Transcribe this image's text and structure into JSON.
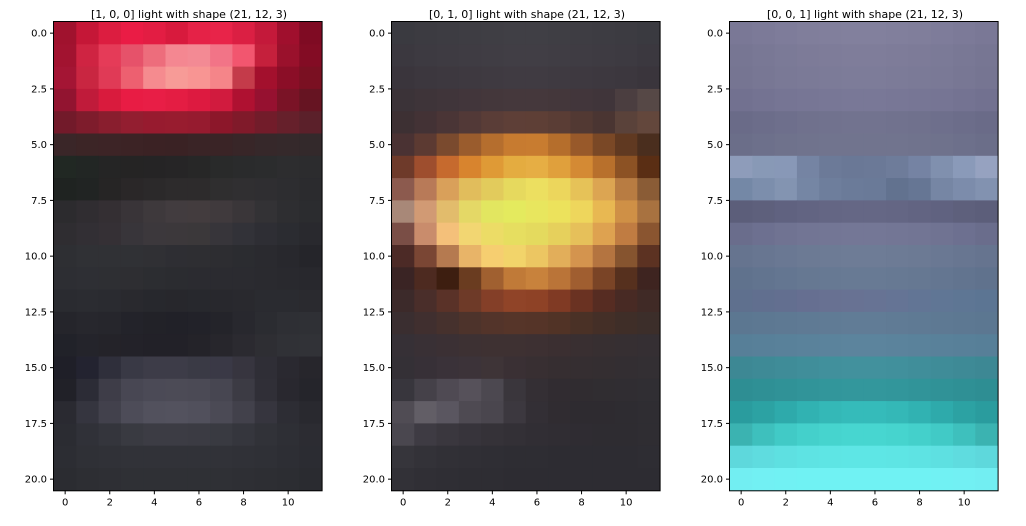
{
  "chart_data": [
    {
      "type": "heatmap",
      "title": "[1, 0, 0] light with shape (21, 12, 3)",
      "xlabel": "",
      "ylabel": "",
      "xlim": [
        -0.5,
        11.5
      ],
      "ylim": [
        20.5,
        -0.5
      ],
      "x_ticks": [
        0,
        2,
        4,
        6,
        8,
        10
      ],
      "y_ticks": [
        0.0,
        2.5,
        5.0,
        7.5,
        10.0,
        12.5,
        15.0,
        17.5,
        20.0
      ],
      "x_tick_labels": [
        "0",
        "2",
        "4",
        "6",
        "8",
        "10"
      ],
      "y_tick_labels": [
        "0.0",
        "2.5",
        "5.0",
        "7.5",
        "10.0",
        "12.5",
        "15.0",
        "17.5",
        "20.0"
      ],
      "shape": [
        21,
        12,
        3
      ],
      "grid": false,
      "row_colors": [
        [
          "#a0122e",
          "#c51737",
          "#dc1d40",
          "#ea1c45",
          "#e31d43",
          "#d81a3d",
          "#e52247",
          "#e82449",
          "#db1f43",
          "#c4193a",
          "#a00f2d",
          "#7f0b23"
        ],
        [
          "#a21330",
          "#cf2442",
          "#e53b58",
          "#e6526a",
          "#ed6d7c",
          "#f48791",
          "#f38a94",
          "#f27487",
          "#f2566f",
          "#c5203c",
          "#9a112c",
          "#830c24"
        ],
        [
          "#a41534",
          "#c92641",
          "#e03a56",
          "#ed6070",
          "#f58b8f",
          "#f79b97",
          "#f89593",
          "#f58589",
          "#c43b4a",
          "#a3102d",
          "#8b0e27",
          "#7a1022"
        ],
        [
          "#921430",
          "#c01b3a",
          "#d91b3d",
          "#e81c44",
          "#e81e46",
          "#e41d43",
          "#dd1a40",
          "#d11b3e",
          "#af1131",
          "#961130",
          "#7a1326",
          "#661422"
        ],
        [
          "#721a2a",
          "#7e1c2c",
          "#891e2e",
          "#931e30",
          "#971b2f",
          "#981c2f",
          "#961b2f",
          "#8c172a",
          "#801a2a",
          "#721c2a",
          "#66202b",
          "#5b202a"
        ],
        [
          "#3a2628",
          "#3c2526",
          "#3d2426",
          "#3c2325",
          "#3b2224",
          "#3a2224",
          "#3a2426",
          "#3a2426",
          "#382628",
          "#36282a",
          "#35292b",
          "#33292b"
        ],
        [
          "#212823",
          "#222624",
          "#252525",
          "#252424",
          "#252425",
          "#262526",
          "#272727",
          "#292a2a",
          "#2a2b2c",
          "#2b2c2d",
          "#2d2d2f",
          "#2c2c2e"
        ],
        [
          "#1f2321",
          "#212423",
          "#262525",
          "#2a2728",
          "#2b292a",
          "#2d2b2c",
          "#2d2b2c",
          "#2f2e2f",
          "#302f31",
          "#2f2e31",
          "#2d2d30",
          "#2b2b2e"
        ],
        [
          "#2c2b2e",
          "#302d31",
          "#342f33",
          "#393438",
          "#3e393c",
          "#423c3f",
          "#433c3e",
          "#403a3d",
          "#3a3639",
          "#333235",
          "#2e2e31",
          "#2b2c2f"
        ],
        [
          "#2f2d31",
          "#322f34",
          "#353035",
          "#38353a",
          "#3c383c",
          "#3c383b",
          "#3b383a",
          "#37353a",
          "#323238",
          "#2e2e34",
          "#2b2c31",
          "#29292e"
        ],
        [
          "#2e2f33",
          "#303135",
          "#303135",
          "#303135",
          "#303034",
          "#2e2e33",
          "#2e2e32",
          "#2d2d31",
          "#2b2c30",
          "#2a2a2f",
          "#28282d",
          "#25252a"
        ],
        [
          "#2d2e33",
          "#2e2f34",
          "#2e2f33",
          "#2e2e32",
          "#2c2d31",
          "#2b2c30",
          "#2b2b30",
          "#2b2b30",
          "#2b2b30",
          "#2a2a2f",
          "#29292e",
          "#28282d"
        ],
        [
          "#2a2b30",
          "#2b2c31",
          "#2a2b30",
          "#29292e",
          "#27282d",
          "#27272c",
          "#27282d",
          "#28282d",
          "#29292e",
          "#2a2b30",
          "#2a2b30",
          "#2a2a2f"
        ],
        [
          "#25252b",
          "#27272d",
          "#26262c",
          "#23232a",
          "#222228",
          "#212128",
          "#222229",
          "#24242a",
          "#28282e",
          "#2b2c31",
          "#2e2f34",
          "#2f3035"
        ],
        [
          "#212229",
          "#24242b",
          "#242329",
          "#232229",
          "#222128",
          "#222128",
          "#242329",
          "#27262c",
          "#2b2a30",
          "#2e2e33",
          "#303136",
          "#313237"
        ],
        [
          "#1f1f28",
          "#232330",
          "#2f2f3b",
          "#393945",
          "#3d3c48",
          "#3d3c48",
          "#3a3a45",
          "#3a3946",
          "#37353f",
          "#2f2e36",
          "#2a2930",
          "#27262c"
        ],
        [
          "#212128",
          "#2c2c36",
          "#3e3d48",
          "#484753",
          "#4b4a56",
          "#4c4b56",
          "#4b4a55",
          "#474651",
          "#3c3b44",
          "#302f37",
          "#29282f",
          "#25252b"
        ],
        [
          "#2a2a31",
          "#35353f",
          "#42414c",
          "#4d4c58",
          "#52515d",
          "#53525e",
          "#51505c",
          "#4b4a55",
          "#42414b",
          "#36353e",
          "#2d2d34",
          "#29292f"
        ],
        [
          "#2b2c32",
          "#303138",
          "#34353c",
          "#393a41",
          "#3c3c44",
          "#3c3c44",
          "#3b3b43",
          "#393a41",
          "#35363d",
          "#313238",
          "#2e2f35",
          "#2c2c32"
        ],
        [
          "#2c2d33",
          "#2f3036",
          "#303137",
          "#313238",
          "#313238",
          "#313238",
          "#313238",
          "#313238",
          "#303137",
          "#2f3036",
          "#2d2e34",
          "#2b2c32"
        ],
        [
          "#2b2c31",
          "#2d2e33",
          "#2e2f34",
          "#2f3035",
          "#2f3035",
          "#2f3035",
          "#2f3035",
          "#2f3035",
          "#2e2f34",
          "#2d2e33",
          "#2c2d32",
          "#2a2b30"
        ]
      ]
    },
    {
      "type": "heatmap",
      "title": "[0, 1, 0] light with shape (21, 12, 3)",
      "xlabel": "",
      "ylabel": "",
      "xlim": [
        -0.5,
        11.5
      ],
      "ylim": [
        20.5,
        -0.5
      ],
      "x_ticks": [
        0,
        2,
        4,
        6,
        8,
        10
      ],
      "y_ticks": [
        0.0,
        2.5,
        5.0,
        7.5,
        10.0,
        12.5,
        15.0,
        17.5,
        20.0
      ],
      "x_tick_labels": [
        "0",
        "2",
        "4",
        "6",
        "8",
        "10"
      ],
      "y_tick_labels": [
        "0.0",
        "2.5",
        "5.0",
        "7.5",
        "10.0",
        "12.5",
        "15.0",
        "17.5",
        "20.0"
      ],
      "shape": [
        21,
        12,
        3
      ],
      "grid": false,
      "row_colors": [
        [
          "#3a3a40",
          "#3c3b41",
          "#3d3c42",
          "#3e3d43",
          "#3f3e44",
          "#403f45",
          "#403f45",
          "#3f3e44",
          "#3e3d43",
          "#3d3c42",
          "#3c3b41",
          "#3a3a40"
        ],
        [
          "#3b383f",
          "#3d3a41",
          "#3e3b42",
          "#3f3c43",
          "#403d44",
          "#413e45",
          "#413e45",
          "#403d44",
          "#3f3c43",
          "#3e3b42",
          "#3d3a41",
          "#3b383f"
        ],
        [
          "#3a353c",
          "#3c373e",
          "#3d383f",
          "#3e3940",
          "#3f3a41",
          "#403b42",
          "#403b42",
          "#3f3a41",
          "#3e3940",
          "#3d383f",
          "#3c373e",
          "#3a353c"
        ],
        [
          "#3b3338",
          "#3e3439",
          "#40353a",
          "#42363b",
          "#44373b",
          "#45383c",
          "#45383c",
          "#44373b",
          "#42363b",
          "#40353a",
          "#4b3e40",
          "#564846"
        ],
        [
          "#3d3033",
          "#433235",
          "#4a3536",
          "#523937",
          "#5a3d37",
          "#5e3f37",
          "#5e3f36",
          "#5a3d35",
          "#523933",
          "#4a3532",
          "#5a423a",
          "#63473c"
        ],
        [
          "#4a3233",
          "#5c3a32",
          "#7a4a2e",
          "#9a5c2d",
          "#b56e2e",
          "#c77b30",
          "#c87c30",
          "#b56e2c",
          "#98592a",
          "#7a4826",
          "#603921",
          "#4a2e1e"
        ],
        [
          "#6e3a2a",
          "#9e4e2e",
          "#c66a2e",
          "#d8842e",
          "#df9a36",
          "#e4ac40",
          "#e6ae44",
          "#e0a03c",
          "#d48a34",
          "#b8702c",
          "#8c5224",
          "#5a2e14"
        ],
        [
          "#8c5a4e",
          "#b87a58",
          "#d9a05a",
          "#e1bd5c",
          "#e2cb5c",
          "#e6d95e",
          "#ecdf60",
          "#ecd65c",
          "#e6c258",
          "#dca552",
          "#b87c42",
          "#8a5c36"
        ],
        [
          "#a88878",
          "#d19a74",
          "#e2bc6c",
          "#e4d866",
          "#e2e660",
          "#e4ea5e",
          "#e8e65e",
          "#ece25c",
          "#eed65c",
          "#e8b852",
          "#cf9046",
          "#a87240"
        ],
        [
          "#7a4e46",
          "#c98c6c",
          "#f4c07a",
          "#f2d672",
          "#ecdc66",
          "#e6de60",
          "#e4da5e",
          "#e6d05c",
          "#e6c05a",
          "#dea250",
          "#c07c42",
          "#8a5530"
        ],
        [
          "#4c2a26",
          "#7a4634",
          "#b57a50",
          "#e8b468",
          "#f6ce70",
          "#f2d46a",
          "#ecc662",
          "#e2ae5a",
          "#d4944e",
          "#b47440",
          "#86542f",
          "#5c3222"
        ],
        [
          "#3a2424",
          "#4d2a20",
          "#3d1e10",
          "#6a3c20",
          "#a06030",
          "#c07a38",
          "#c8823c",
          "#ba7438",
          "#a05e30",
          "#7a4426",
          "#56301e",
          "#3e2420"
        ],
        [
          "#3c2a2a",
          "#4a2e2a",
          "#5a3228",
          "#6e3a28",
          "#843f28",
          "#904428",
          "#8e4226",
          "#803a24",
          "#6a3222",
          "#562c22",
          "#482a24",
          "#402a26"
        ],
        [
          "#3a2e30",
          "#402f2f",
          "#46312d",
          "#4d332b",
          "#53342a",
          "#563529",
          "#553428",
          "#513326",
          "#4a3126",
          "#442f27",
          "#3f2e28",
          "#3c2e2a"
        ],
        [
          "#363036",
          "#393035",
          "#3b3034",
          "#3d3133",
          "#3e3132",
          "#3e3132",
          "#3d3032",
          "#3b2f31",
          "#392f31",
          "#372f31",
          "#362f32",
          "#352f33"
        ],
        [
          "#343036",
          "#373037",
          "#3a3239",
          "#3c3339",
          "#3e3437",
          "#3a3034",
          "#382f32",
          "#362e31",
          "#352e31",
          "#342e31",
          "#332e32",
          "#332f33"
        ],
        [
          "#38363d",
          "#454149",
          "#4f4a53",
          "#56515a",
          "#4c4850",
          "#3a363c",
          "#342f34",
          "#312c31",
          "#302c30",
          "#302d31",
          "#302d32",
          "#302e33"
        ],
        [
          "#504c54",
          "#625e66",
          "#5a5660",
          "#4e4a52",
          "#4a464e",
          "#3c383f",
          "#332f35",
          "#302c31",
          "#2e2b30",
          "#2e2b30",
          "#2e2c31",
          "#2f2d32"
        ],
        [
          "#4a474f",
          "#3e3b43",
          "#3a373e",
          "#37343b",
          "#353238",
          "#333036",
          "#312e34",
          "#302d33",
          "#2f2c32",
          "#2e2c31",
          "#2e2c31",
          "#2f2d32"
        ],
        [
          "#36353b",
          "#333238",
          "#313036",
          "#302f35",
          "#2f2e34",
          "#2e2d33",
          "#2e2d33",
          "#2d2c32",
          "#2d2c32",
          "#2d2c32",
          "#2d2c32",
          "#2e2d33"
        ],
        [
          "#323137",
          "#302f35",
          "#2f2e34",
          "#2e2d33",
          "#2e2d33",
          "#2d2c32",
          "#2d2c32",
          "#2d2c32",
          "#2d2c32",
          "#2d2c32",
          "#2d2c32",
          "#2d2c32"
        ]
      ]
    },
    {
      "type": "heatmap",
      "title": "[0, 0, 1] light with shape (21, 12, 3)",
      "xlabel": "",
      "ylabel": "",
      "xlim": [
        -0.5,
        11.5
      ],
      "ylim": [
        20.5,
        -0.5
      ],
      "x_ticks": [
        0,
        2,
        4,
        6,
        8,
        10
      ],
      "y_ticks": [
        0.0,
        2.5,
        5.0,
        7.5,
        10.0,
        12.5,
        15.0,
        17.5,
        20.0
      ],
      "x_tick_labels": [
        "0",
        "2",
        "4",
        "6",
        "8",
        "10"
      ],
      "y_tick_labels": [
        "0.0",
        "2.5",
        "5.0",
        "7.5",
        "10.0",
        "12.5",
        "15.0",
        "17.5",
        "20.0"
      ],
      "shape": [
        21,
        12,
        3
      ],
      "grid": false,
      "row_colors": [
        [
          "#7a7896",
          "#7c7a98",
          "#7e7c9a",
          "#807e9b",
          "#817f9c",
          "#82809d",
          "#82809d",
          "#817f9c",
          "#807e9b",
          "#7e7c9a",
          "#7c7a98",
          "#7a7896"
        ],
        [
          "#777693",
          "#797895",
          "#7b7a97",
          "#7d7b98",
          "#7e7c99",
          "#7f7d9a",
          "#7f7d9a",
          "#7e7c99",
          "#7d7b98",
          "#7b7a97",
          "#797895",
          "#777693"
        ],
        [
          "#767592",
          "#787794",
          "#7a7996",
          "#7b7a97",
          "#7c7b98",
          "#7d7c99",
          "#7d7c99",
          "#7c7b98",
          "#7b7a97",
          "#7a7996",
          "#787794",
          "#767592"
        ],
        [
          "#727190",
          "#747392",
          "#767594",
          "#777695",
          "#787796",
          "#797897",
          "#797897",
          "#787796",
          "#777695",
          "#767594",
          "#747392",
          "#727190"
        ],
        [
          "#6a6b88",
          "#6c6d8a",
          "#6e6f8c",
          "#70718d",
          "#71728e",
          "#72738f",
          "#72738f",
          "#71728e",
          "#70718d",
          "#6e6f8c",
          "#6c6d8a",
          "#6a6b88"
        ],
        [
          "#6b6e89",
          "#6d708b",
          "#6f728c",
          "#70738d",
          "#71748e",
          "#71748e",
          "#71748e",
          "#71748e",
          "#70738d",
          "#6f728c",
          "#6d708b",
          "#6b6e89"
        ],
        [
          "#8e9cba",
          "#8899b6",
          "#8898b7",
          "#7584a3",
          "#6c7a98",
          "#6a7896",
          "#6b7997",
          "#6e7c9a",
          "#7583a3",
          "#8090ae",
          "#8a9ab9",
          "#96a2c0"
        ],
        [
          "#7488a6",
          "#7c8eac",
          "#8394b1",
          "#7586a4",
          "#6e7e9c",
          "#6b7b99",
          "#6a7a98",
          "#62728f",
          "#667694",
          "#7686a4",
          "#7c8cab",
          "#8292b0"
        ],
        [
          "#5c5e7a",
          "#5e607c",
          "#606280",
          "#626482",
          "#646684",
          "#656785",
          "#656785",
          "#646684",
          "#626482",
          "#606280",
          "#5e607c",
          "#5c5e7a"
        ],
        [
          "#6a6d8c",
          "#6d7090",
          "#707392",
          "#727594",
          "#737695",
          "#747796",
          "#747796",
          "#737695",
          "#727594",
          "#707392",
          "#6d7090",
          "#6a6d8c"
        ],
        [
          "#66748f",
          "#687691",
          "#6a7893",
          "#6c7a94",
          "#6d7b95",
          "#6e7c96",
          "#6e7c96",
          "#6d7b95",
          "#6c7a94",
          "#6a7893",
          "#687691",
          "#66748f"
        ],
        [
          "#60728d",
          "#62748f",
          "#647691",
          "#667892",
          "#677993",
          "#687a94",
          "#687a94",
          "#677993",
          "#667892",
          "#647691",
          "#62748f",
          "#60728d"
        ],
        [
          "#5f708e",
          "#616f8f",
          "#636f90",
          "#666f91",
          "#687192",
          "#687293",
          "#677394",
          "#657495",
          "#627595",
          "#607695",
          "#5e7694",
          "#5c7593"
        ],
        [
          "#5c7791",
          "#5d7892",
          "#5e7993",
          "#5f7a94",
          "#607b95",
          "#617c96",
          "#617c96",
          "#607b95",
          "#5f7a94",
          "#5e7993",
          "#5d7892",
          "#5c7791"
        ],
        [
          "#577f98",
          "#588099",
          "#59819a",
          "#5a829b",
          "#5b839c",
          "#5c849d",
          "#5c849d",
          "#5b839c",
          "#5a829b",
          "#59819a",
          "#588099",
          "#577f98"
        ],
        [
          "#3d8894",
          "#3e8a96",
          "#3f8c98",
          "#408e9a",
          "#41909c",
          "#42919d",
          "#42919d",
          "#41909c",
          "#408e9a",
          "#3f8c98",
          "#3e8a96",
          "#3d8894"
        ],
        [
          "#2e8e93",
          "#2f9095",
          "#309297",
          "#319499",
          "#32969b",
          "#33979c",
          "#33979c",
          "#32969b",
          "#319499",
          "#309297",
          "#2f9095",
          "#2e8e93"
        ],
        [
          "#2a9c9e",
          "#2ca2a3",
          "#2eaaab",
          "#31b2b2",
          "#34b8b7",
          "#35bbba",
          "#35bbba",
          "#34b8b7",
          "#31b2b2",
          "#2eaaab",
          "#2ca2a3",
          "#2a9c9e"
        ],
        [
          "#3bb3b1",
          "#3ec0bd",
          "#41cac6",
          "#44d0cb",
          "#46d4ce",
          "#47d6d0",
          "#47d6d0",
          "#46d4ce",
          "#44d0cb",
          "#41cac6",
          "#3ec0bd",
          "#3bb3b1"
        ],
        [
          "#5ed8dc",
          "#5fdcdf",
          "#5ee0e1",
          "#5ee3e3",
          "#5ee5e4",
          "#5ee6e5",
          "#5ee6e5",
          "#5ee5e4",
          "#5ee3e3",
          "#5ee0e1",
          "#5fdcdf",
          "#5ed8dc"
        ],
        [
          "#72eef2",
          "#72f0f3",
          "#71f1f3",
          "#70f2f3",
          "#70f2f3",
          "#70f2f3",
          "#70f2f3",
          "#70f2f3",
          "#70f2f3",
          "#71f1f3",
          "#72f0f3",
          "#72eef2"
        ]
      ]
    }
  ]
}
